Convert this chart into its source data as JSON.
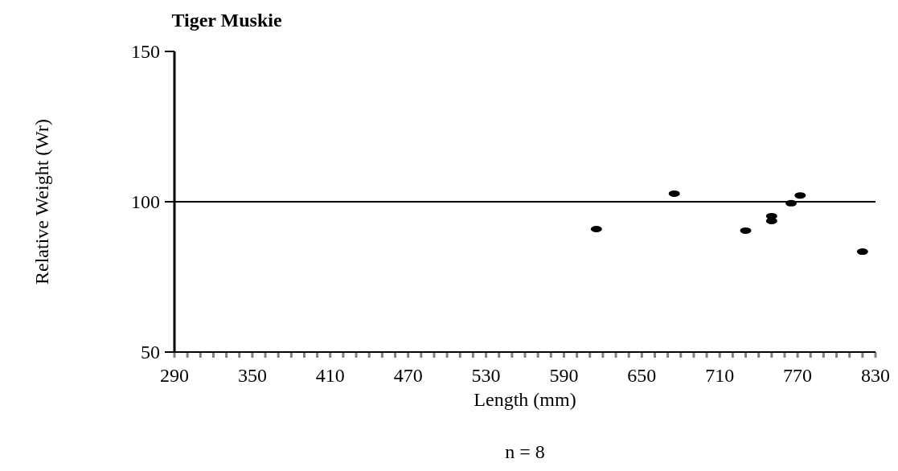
{
  "chart_data": {
    "type": "scatter",
    "title": "Tiger Muskie",
    "xlabel": "Length (mm)",
    "ylabel": "Relative Weight (Wr)",
    "annotations": [
      "n = 8"
    ],
    "x": [
      615,
      675,
      730,
      750,
      750,
      765,
      772,
      820
    ],
    "series": [
      {
        "color": "#000000",
        "values": [
          90.9,
          102.7,
          90.4,
          95.2,
          93.6,
          99.5,
          102.1,
          83.4
        ]
      }
    ],
    "marker": "circle",
    "xlim": [
      290,
      830
    ],
    "xticks": [
      290,
      {
        "value": 300,
        "label": null
      },
      {
        "value": 310,
        "label": null
      },
      {
        "value": 320,
        "label": null
      },
      {
        "value": 330,
        "label": null
      },
      {
        "value": 340,
        "label": null
      },
      350,
      {
        "value": 360,
        "label": null
      },
      {
        "value": 370,
        "label": null
      },
      {
        "value": 380,
        "label": null
      },
      {
        "value": 390,
        "label": null
      },
      {
        "value": 400,
        "label": null
      },
      410,
      {
        "value": 420,
        "label": null
      },
      {
        "value": 430,
        "label": null
      },
      {
        "value": 440,
        "label": null
      },
      {
        "value": 450,
        "label": null
      },
      {
        "value": 460,
        "label": null
      },
      470,
      {
        "value": 480,
        "label": null
      },
      {
        "value": 490,
        "label": null
      },
      {
        "value": 500,
        "label": null
      },
      {
        "value": 510,
        "label": null
      },
      {
        "value": 520,
        "label": null
      },
      530,
      {
        "value": 540,
        "label": null
      },
      {
        "value": 550,
        "label": null
      },
      {
        "value": 560,
        "label": null
      },
      {
        "value": 570,
        "label": null
      },
      {
        "value": 580,
        "label": null
      },
      590,
      {
        "value": 600,
        "label": null
      },
      {
        "value": 610,
        "label": null
      },
      {
        "value": 620,
        "label": null
      },
      {
        "value": 630,
        "label": null
      },
      {
        "value": 640,
        "label": null
      },
      650,
      {
        "value": 660,
        "label": null
      },
      {
        "value": 670,
        "label": null
      },
      {
        "value": 680,
        "label": null
      },
      {
        "value": 690,
        "label": null
      },
      {
        "value": 700,
        "label": null
      },
      710,
      {
        "value": 720,
        "label": null
      },
      {
        "value": 730,
        "label": null
      },
      {
        "value": 740,
        "label": null
      },
      {
        "value": 750,
        "label": null
      },
      {
        "value": 760,
        "label": null
      },
      770,
      {
        "value": 780,
        "label": null
      },
      {
        "value": 790,
        "label": null
      },
      {
        "value": 800,
        "label": null
      },
      {
        "value": 810,
        "label": null
      },
      {
        "value": 820,
        "label": null
      },
      830
    ],
    "ylim": [
      50,
      150
    ],
    "yticks": [
      50,
      100,
      150
    ],
    "ref_lines": [
      {
        "axis": "y",
        "value": 100,
        "color": "#000000"
      }
    ],
    "grid": false
  }
}
